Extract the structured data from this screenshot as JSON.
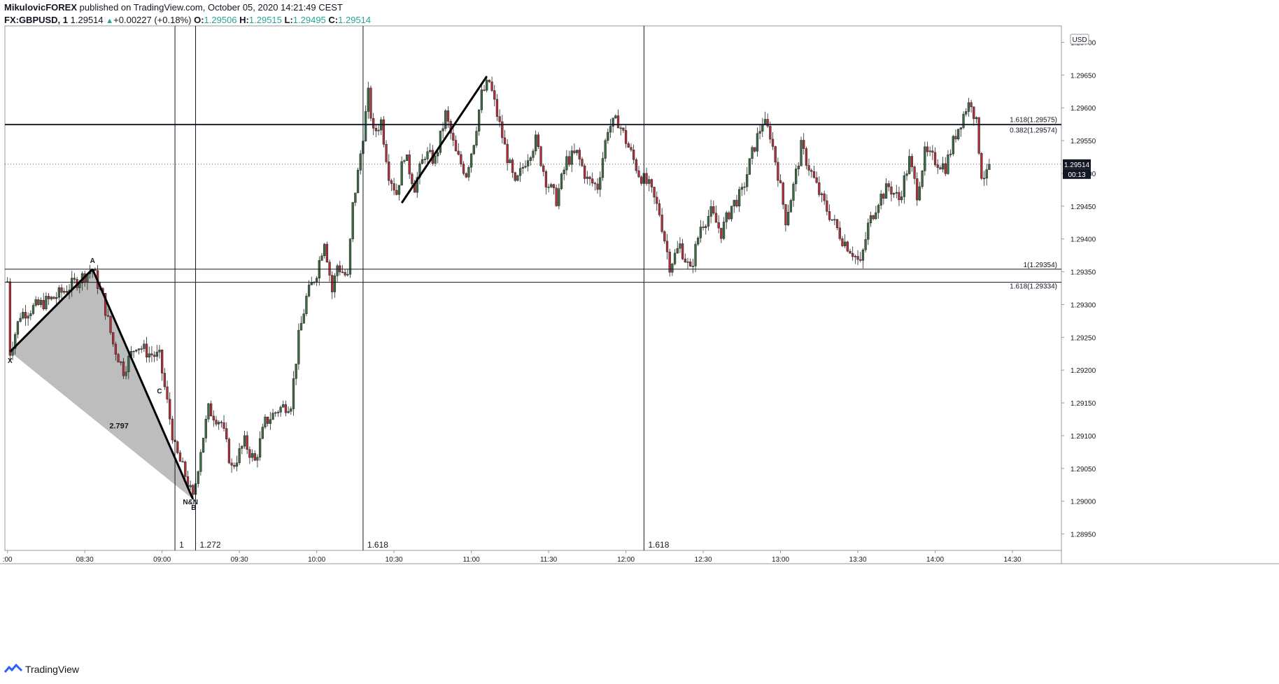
{
  "header": {
    "author": "MikulovicFOREX",
    "published": " published on TradingView.com, October 05, 2020 14:21:49 CEST",
    "symbol": "FX:GBPUSD, 1",
    "last": "1.29514",
    "change": "+0.00227 (+0.18%)",
    "o_label": "O:",
    "o": "1.29506",
    "h_label": "H:",
    "h": "1.29515",
    "l_label": "L:",
    "l": "1.29495",
    "c_label": "C:",
    "c": "1.29514"
  },
  "footer": {
    "brand": "TradingView"
  },
  "colors": {
    "up": "#3d6b45",
    "down": "#b0313a",
    "accent": "#26a69a",
    "shade": "#b2b2b2"
  },
  "chart_data": {
    "type": "candlestick",
    "currency": "USD",
    "y_ticks": [
      "1.29700",
      "1.29650",
      "1.29600",
      "1.29550",
      "1.29500",
      "1.29450",
      "1.29400",
      "1.29350",
      "1.29300",
      "1.29250",
      "1.29200",
      "1.29150",
      "1.29100",
      "1.29050",
      "1.29000",
      "1.28950"
    ],
    "ylim": [
      1.28925,
      1.29725
    ],
    "x_ticks": [
      {
        "t": "8:00",
        "label": ":00"
      },
      {
        "t": "8:30",
        "label": "08:30"
      },
      {
        "t": "9:00",
        "label": "09:00"
      },
      {
        "t": "9:30",
        "label": "09:30"
      },
      {
        "t": "10:00",
        "label": "10:00"
      },
      {
        "t": "10:30",
        "label": "10:30"
      },
      {
        "t": "11:00",
        "label": "11:00"
      },
      {
        "t": "11:30",
        "label": "11:30"
      },
      {
        "t": "12:00",
        "label": "12:00"
      },
      {
        "t": "12:30",
        "label": "12:30"
      },
      {
        "t": "13:00",
        "label": "13:00"
      },
      {
        "t": "13:30",
        "label": "13:30"
      },
      {
        "t": "14:00",
        "label": "14:00"
      },
      {
        "t": "14:30",
        "label": "14:30"
      }
    ],
    "x_range": [
      "7:59",
      "14:49"
    ],
    "last_price": "1.29514",
    "countdown": "00:13",
    "horizontal_levels": [
      {
        "price": 1.29575,
        "label": "1.618(1.29575)"
      },
      {
        "price": 1.29574,
        "label": "0.382(1.29574)"
      },
      {
        "price": 1.29354,
        "label": "1(1.29354)"
      },
      {
        "price": 1.29334,
        "label": "1.618(1.29334)"
      }
    ],
    "vertical_lines": [
      {
        "t": "9:05",
        "label": "1"
      },
      {
        "t": "9:13",
        "label": "1.272"
      },
      {
        "t": "10:18",
        "label": "1.618"
      },
      {
        "t": "12:07",
        "label": "1.618"
      }
    ],
    "pattern": {
      "ratio": "2.797",
      "points": [
        {
          "name": "X",
          "t": "8:01",
          "price": 1.29228
        },
        {
          "name": "A",
          "t": "8:33",
          "price": 1.29354
        },
        {
          "name": "B",
          "t": "9:12",
          "price": 1.29003
        },
        {
          "name": "C",
          "t": "8:59",
          "price": 1.29169
        },
        {
          "name": "N&N",
          "t": "9:11",
          "price": 1.29003
        }
      ]
    },
    "trend_line": {
      "t1": "10:33",
      "p1": 1.29455,
      "t2": "11:06",
      "p2": 1.29648
    },
    "candle_path": [
      {
        "t": "8:00",
        "price": 1.29335
      },
      {
        "t": "8:01",
        "price": 1.29228
      },
      {
        "t": "8:05",
        "price": 1.29285
      },
      {
        "t": "8:10",
        "price": 1.29295
      },
      {
        "t": "8:18",
        "price": 1.2931
      },
      {
        "t": "8:25",
        "price": 1.2933
      },
      {
        "t": "8:33",
        "price": 1.29354
      },
      {
        "t": "8:37",
        "price": 1.2931
      },
      {
        "t": "8:41",
        "price": 1.2924
      },
      {
        "t": "8:45",
        "price": 1.292
      },
      {
        "t": "8:50",
        "price": 1.2924
      },
      {
        "t": "8:55",
        "price": 1.29225
      },
      {
        "t": "8:59",
        "price": 1.2922
      },
      {
        "t": "9:02",
        "price": 1.2915
      },
      {
        "t": "9:05",
        "price": 1.2908
      },
      {
        "t": "9:09",
        "price": 1.2904
      },
      {
        "t": "9:12",
        "price": 1.29003
      },
      {
        "t": "9:15",
        "price": 1.2908
      },
      {
        "t": "9:18",
        "price": 1.2914
      },
      {
        "t": "9:23",
        "price": 1.2912
      },
      {
        "t": "9:27",
        "price": 1.2905
      },
      {
        "t": "9:32",
        "price": 1.2909
      },
      {
        "t": "9:36",
        "price": 1.2906
      },
      {
        "t": "9:40",
        "price": 1.2912
      },
      {
        "t": "9:45",
        "price": 1.2914
      },
      {
        "t": "9:50",
        "price": 1.2915
      },
      {
        "t": "9:53",
        "price": 1.2925
      },
      {
        "t": "9:56",
        "price": 1.2931
      },
      {
        "t": "10:00",
        "price": 1.2935
      },
      {
        "t": "10:03",
        "price": 1.294
      },
      {
        "t": "10:06",
        "price": 1.2932
      },
      {
        "t": "10:08",
        "price": 1.2936
      },
      {
        "t": "10:12",
        "price": 1.2934
      },
      {
        "t": "10:14",
        "price": 1.2945
      },
      {
        "t": "10:16",
        "price": 1.295
      },
      {
        "t": "10:18",
        "price": 1.2956
      },
      {
        "t": "10:20",
        "price": 1.2962
      },
      {
        "t": "10:22",
        "price": 1.2956
      },
      {
        "t": "10:25",
        "price": 1.2958
      },
      {
        "t": "10:28",
        "price": 1.295
      },
      {
        "t": "10:31",
        "price": 1.2947
      },
      {
        "t": "10:34",
        "price": 1.2953
      },
      {
        "t": "10:38",
        "price": 1.2948
      },
      {
        "t": "10:42",
        "price": 1.2953
      },
      {
        "t": "10:46",
        "price": 1.2952
      },
      {
        "t": "10:50",
        "price": 1.2959
      },
      {
        "t": "10:54",
        "price": 1.2953
      },
      {
        "t": "10:58",
        "price": 1.295
      },
      {
        "t": "11:01",
        "price": 1.2955
      },
      {
        "t": "11:04",
        "price": 1.2962
      },
      {
        "t": "11:07",
        "price": 1.2964
      },
      {
        "t": "11:10",
        "price": 1.2959
      },
      {
        "t": "11:13",
        "price": 1.2954
      },
      {
        "t": "11:17",
        "price": 1.2948
      },
      {
        "t": "11:21",
        "price": 1.2952
      },
      {
        "t": "11:25",
        "price": 1.2955
      },
      {
        "t": "11:29",
        "price": 1.2949
      },
      {
        "t": "11:33",
        "price": 1.2946
      },
      {
        "t": "11:37",
        "price": 1.2952
      },
      {
        "t": "11:41",
        "price": 1.2953
      },
      {
        "t": "11:45",
        "price": 1.2949
      },
      {
        "t": "11:49",
        "price": 1.2948
      },
      {
        "t": "11:53",
        "price": 1.2957
      },
      {
        "t": "11:57",
        "price": 1.2958
      },
      {
        "t": "12:01",
        "price": 1.2954
      },
      {
        "t": "12:05",
        "price": 1.295
      },
      {
        "t": "12:09",
        "price": 1.2948
      },
      {
        "t": "12:13",
        "price": 1.2944
      },
      {
        "t": "12:17",
        "price": 1.2936
      },
      {
        "t": "12:21",
        "price": 1.2939
      },
      {
        "t": "12:25",
        "price": 1.2935
      },
      {
        "t": "12:29",
        "price": 1.2942
      },
      {
        "t": "12:33",
        "price": 1.2944
      },
      {
        "t": "12:37",
        "price": 1.2941
      },
      {
        "t": "12:41",
        "price": 1.2945
      },
      {
        "t": "12:45",
        "price": 1.2947
      },
      {
        "t": "12:49",
        "price": 1.2953
      },
      {
        "t": "12:53",
        "price": 1.2958
      },
      {
        "t": "12:56",
        "price": 1.2956
      },
      {
        "t": "12:59",
        "price": 1.295
      },
      {
        "t": "13:02",
        "price": 1.2943
      },
      {
        "t": "13:05",
        "price": 1.2948
      },
      {
        "t": "13:08",
        "price": 1.2954
      },
      {
        "t": "13:12",
        "price": 1.295
      },
      {
        "t": "13:16",
        "price": 1.2946
      },
      {
        "t": "13:20",
        "price": 1.2943
      },
      {
        "t": "13:24",
        "price": 1.294
      },
      {
        "t": "13:28",
        "price": 1.2938
      },
      {
        "t": "13:31",
        "price": 1.2936
      },
      {
        "t": "13:34",
        "price": 1.2942
      },
      {
        "t": "13:38",
        "price": 1.2946
      },
      {
        "t": "13:42",
        "price": 1.2948
      },
      {
        "t": "13:46",
        "price": 1.2946
      },
      {
        "t": "13:50",
        "price": 1.2952
      },
      {
        "t": "13:53",
        "price": 1.2947
      },
      {
        "t": "13:56",
        "price": 1.2953
      },
      {
        "t": "14:00",
        "price": 1.2952
      },
      {
        "t": "14:04",
        "price": 1.2951
      },
      {
        "t": "14:08",
        "price": 1.2956
      },
      {
        "t": "14:12",
        "price": 1.296
      },
      {
        "t": "14:14",
        "price": 1.2961
      },
      {
        "t": "14:16",
        "price": 1.29575
      },
      {
        "t": "14:18",
        "price": 1.295
      },
      {
        "t": "14:20",
        "price": 1.29495
      },
      {
        "t": "14:21",
        "price": 1.29514
      }
    ]
  }
}
